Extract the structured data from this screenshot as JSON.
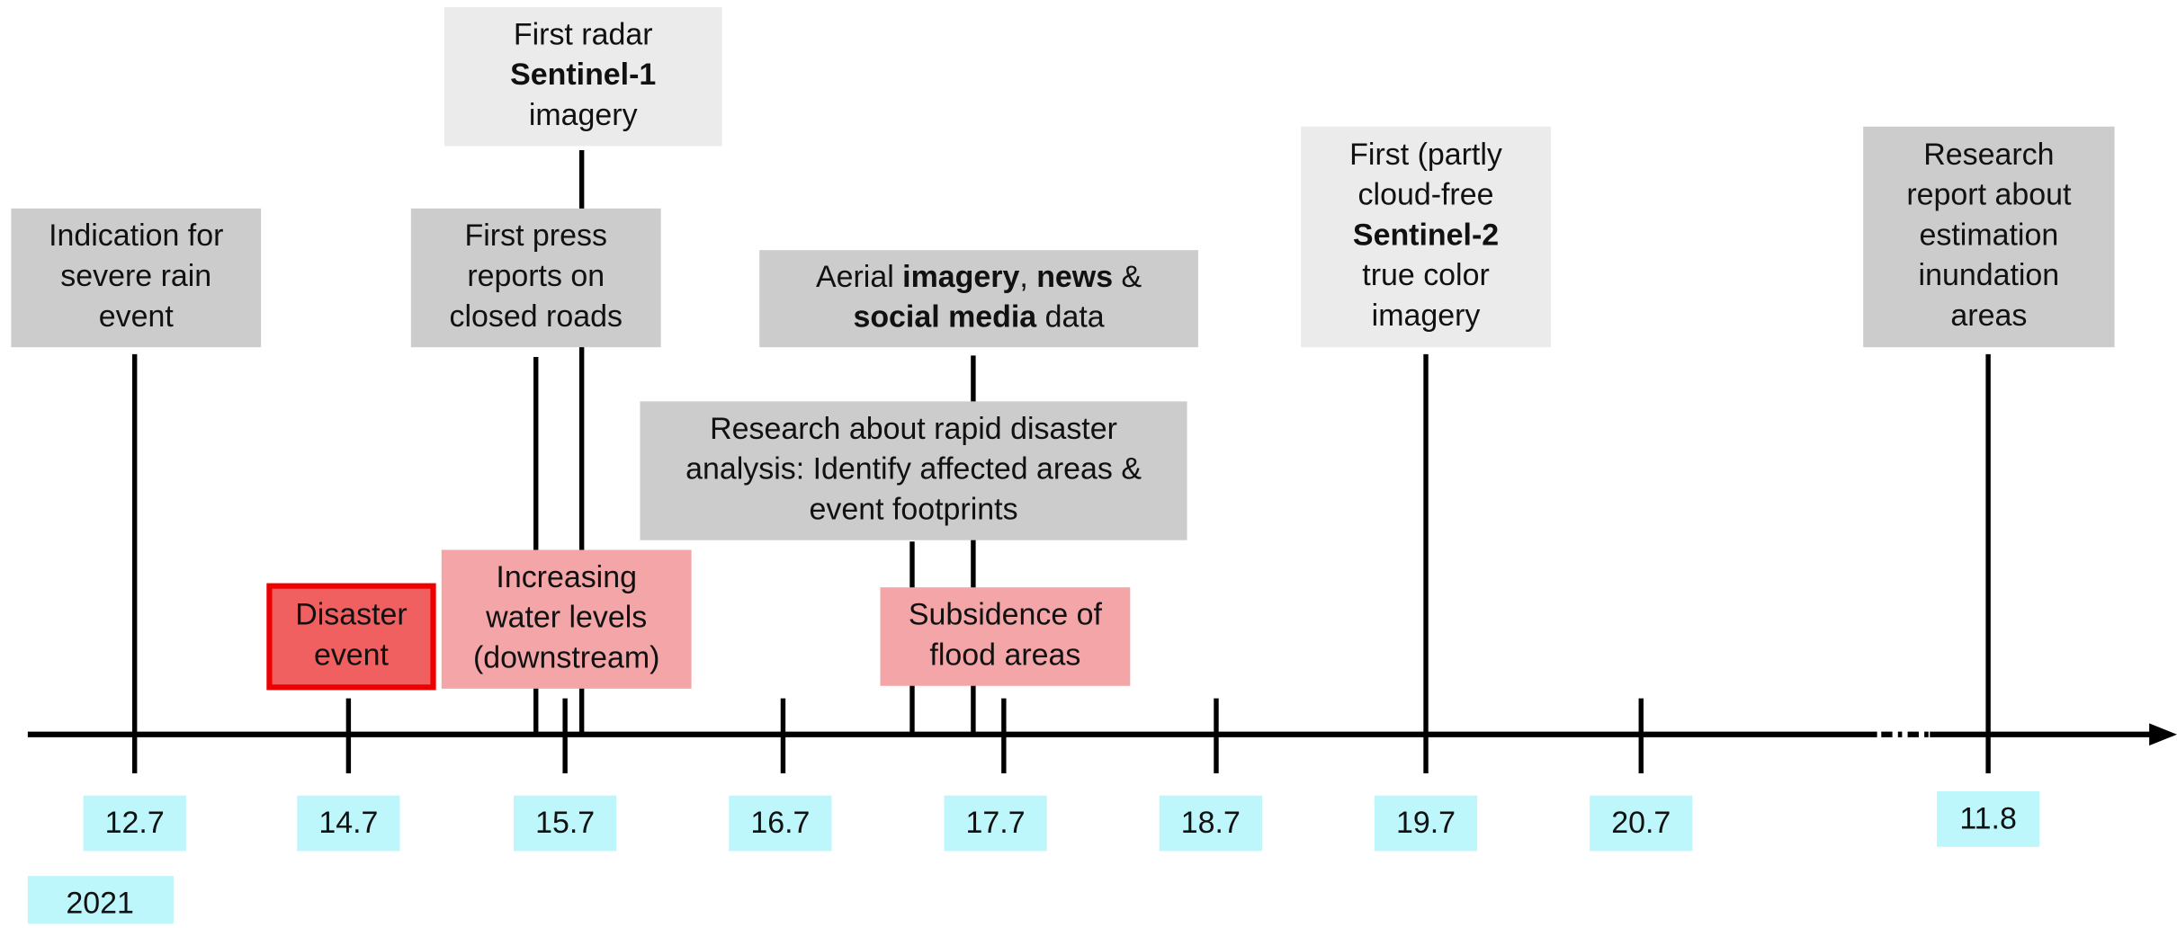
{
  "boxes": [
    {
      "lines": [
        [
          {
            "text": "Indication for"
          }
        ],
        [
          {
            "text": "severe rain"
          }
        ],
        [
          {
            "text": "event"
          }
        ]
      ]
    },
    {
      "lines": [
        [
          {
            "text": "First radar"
          }
        ],
        [
          {
            "text": "Sentinel-1",
            "bold": true
          }
        ],
        [
          {
            "text": "imagery"
          }
        ]
      ]
    },
    {
      "lines": [
        [
          {
            "text": "First press"
          }
        ],
        [
          {
            "text": "reports on"
          }
        ],
        [
          {
            "text": "closed roads"
          }
        ]
      ]
    },
    {
      "lines": [
        [
          {
            "text": "Aerial "
          },
          {
            "text": "imagery",
            "bold": true
          },
          {
            "text": ", "
          },
          {
            "text": "news",
            "bold": true
          },
          {
            "text": " &"
          }
        ],
        [
          {
            "text": "social media",
            "bold": true
          },
          {
            "text": " data"
          }
        ]
      ]
    },
    {
      "lines": [
        [
          {
            "text": "Research about rapid disaster"
          }
        ],
        [
          {
            "text": "analysis: Identify affected areas &"
          }
        ],
        [
          {
            "text": "event footprints"
          }
        ]
      ]
    },
    {
      "lines": [
        [
          {
            "text": "First (partly"
          }
        ],
        [
          {
            "text": "cloud-free"
          }
        ],
        [
          {
            "text": "Sentinel-2",
            "bold": true
          }
        ],
        [
          {
            "text": "true color"
          }
        ],
        [
          {
            "text": "imagery"
          }
        ]
      ]
    },
    {
      "lines": [
        [
          {
            "text": "Research"
          }
        ],
        [
          {
            "text": "report about"
          }
        ],
        [
          {
            "text": "estimation"
          }
        ],
        [
          {
            "text": "inundation"
          }
        ],
        [
          {
            "text": "areas"
          }
        ]
      ]
    },
    {
      "lines": [
        [
          {
            "text": "Disaster"
          }
        ],
        [
          {
            "text": "event"
          }
        ]
      ]
    },
    {
      "lines": [
        [
          {
            "text": "Increasing"
          }
        ],
        [
          {
            "text": "water levels"
          }
        ],
        [
          {
            "text": "(downstream)"
          }
        ]
      ]
    },
    {
      "lines": [
        [
          {
            "text": "Subsidence of"
          }
        ],
        [
          {
            "text": "flood areas"
          }
        ]
      ]
    }
  ],
  "dates": [
    "12.7",
    "14.7",
    "15.7",
    "16.7",
    "17.7",
    "18.7",
    "19.7",
    "20.7",
    "11.8"
  ],
  "year": "2021"
}
